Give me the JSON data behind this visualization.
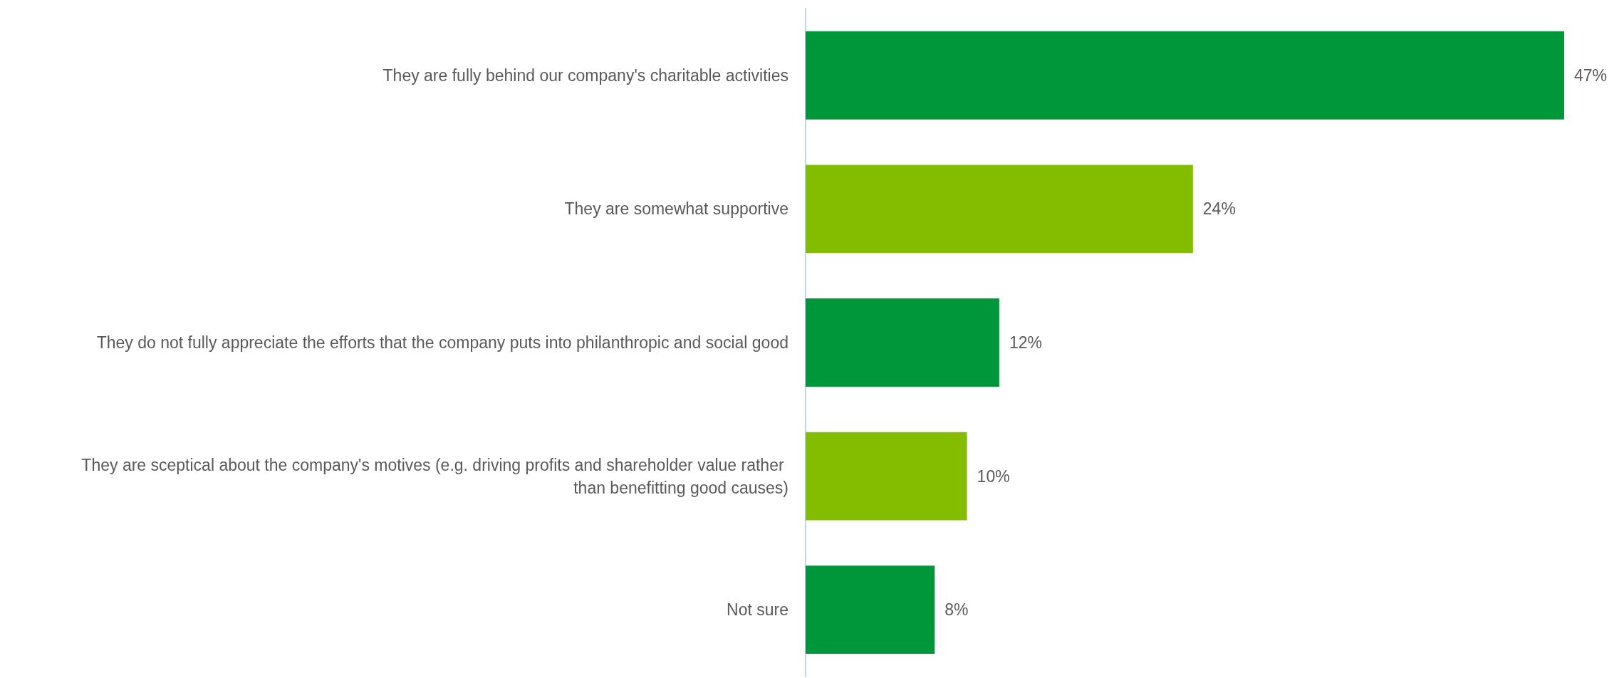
{
  "chart_data": {
    "type": "bar",
    "orientation": "horizontal",
    "categories": [
      "They are fully behind our company's charitable activities",
      "They are somewhat supportive",
      "They do not fully appreciate the efforts that the company puts into philanthropic and social good",
      "They are sceptical about the company's motives (e.g. driving profits and shareholder value rather than benefitting good causes)",
      "Not sure"
    ],
    "values": [
      47,
      24,
      12,
      10,
      8
    ],
    "colors": [
      "#00973a",
      "#84bd00",
      "#00973a",
      "#84bd00",
      "#00973a"
    ],
    "value_labels": [
      "47%",
      "24%",
      "12%",
      "10%",
      "8%"
    ]
  }
}
